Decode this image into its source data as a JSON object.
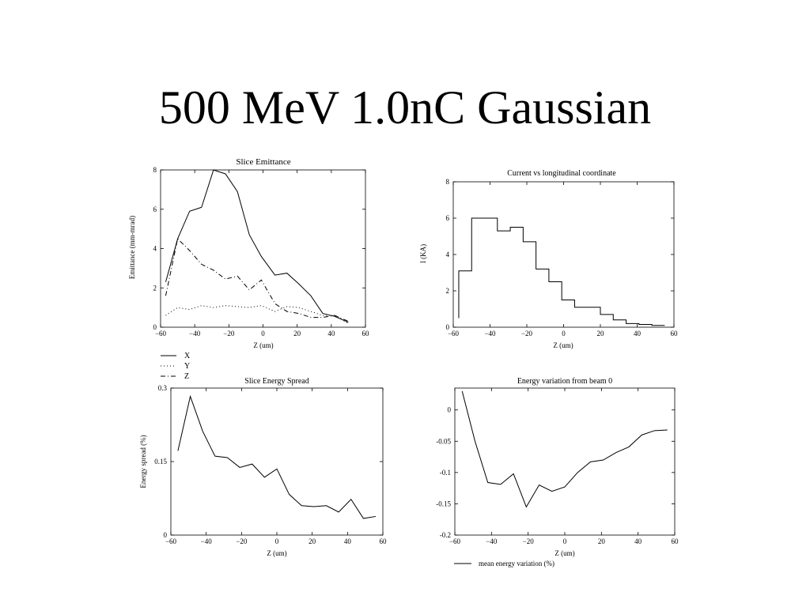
{
  "slide": {
    "title": "500 MeV 1.0nC Gaussian"
  },
  "chart_data": [
    {
      "id": "emittance",
      "type": "line",
      "title": "Slice Emittance",
      "xlabel": "Z (um)",
      "ylabel": "Emittance (mm-mrad)",
      "xlim": [
        -60,
        60
      ],
      "ylim": [
        0,
        8
      ],
      "xticks": [
        -60,
        -40,
        -20,
        0,
        20,
        40,
        60
      ],
      "yticks": [
        0,
        2,
        4,
        6,
        8
      ],
      "xtick_labels": [
        "−60",
        "−40",
        "−20",
        "0",
        "20",
        "40",
        "60"
      ],
      "ytick_labels": [
        "0",
        "2",
        "4",
        "6",
        "8"
      ],
      "legend_position": "below-left",
      "series": [
        {
          "name": "X",
          "style": "solid",
          "x": [
            -57,
            -50,
            -43,
            -36,
            -29,
            -22,
            -15,
            -8,
            -1,
            7,
            14,
            21,
            28,
            35,
            42,
            50
          ],
          "y": [
            2.3,
            4.5,
            5.9,
            6.1,
            8.0,
            7.8,
            6.9,
            4.7,
            3.6,
            2.65,
            2.75,
            2.2,
            1.6,
            0.7,
            0.55,
            0.25
          ]
        },
        {
          "name": "Y",
          "style": "dotted",
          "x": [
            -57,
            -50,
            -43,
            -36,
            -29,
            -22,
            -15,
            -8,
            -1,
            7,
            14,
            21,
            28,
            35,
            42,
            50
          ],
          "y": [
            0.6,
            1.0,
            0.9,
            1.1,
            1.0,
            1.1,
            1.05,
            1.0,
            1.1,
            0.8,
            1.05,
            1.0,
            0.8,
            0.6,
            0.6,
            0.2
          ]
        },
        {
          "name": "Z",
          "style": "dashdot",
          "x": [
            -57,
            -50,
            -43,
            -36,
            -29,
            -22,
            -15,
            -8,
            -1,
            7,
            14,
            21,
            28,
            35,
            42,
            50
          ],
          "y": [
            1.6,
            4.5,
            3.9,
            3.2,
            2.9,
            2.45,
            2.6,
            1.9,
            2.4,
            1.2,
            0.8,
            0.7,
            0.5,
            0.5,
            0.6,
            0.3
          ]
        }
      ]
    },
    {
      "id": "current",
      "type": "line",
      "step": true,
      "title": "Current vs longitudinal coordinate",
      "xlabel": "Z (um)",
      "ylabel": "I (KA)",
      "xlim": [
        -60,
        60
      ],
      "ylim": [
        0,
        8
      ],
      "xticks": [
        -60,
        -40,
        -20,
        0,
        20,
        40,
        60
      ],
      "yticks": [
        0,
        2,
        4,
        6,
        8
      ],
      "xtick_labels": [
        "−60",
        "−40",
        "−20",
        "0",
        "20",
        "40",
        "60"
      ],
      "ytick_labels": [
        "0",
        "2",
        "4",
        "6",
        "8"
      ],
      "series": [
        {
          "edges": [
            -57,
            -50,
            -43,
            -36,
            -29,
            -22,
            -15,
            -8,
            -1,
            6,
            13,
            20,
            27,
            34,
            41,
            48,
            55
          ],
          "y": [
            3.1,
            6.0,
            6.0,
            5.3,
            5.5,
            4.7,
            3.2,
            2.5,
            1.5,
            1.1,
            1.1,
            0.7,
            0.4,
            0.2,
            0.15,
            0.1
          ],
          "start_y": 0.5
        }
      ]
    },
    {
      "id": "energy-spread",
      "type": "line",
      "title": "Slice Energy Spread",
      "xlabel": "Z (um)",
      "ylabel": "Energy spread (%)",
      "xlim": [
        -60,
        60
      ],
      "ylim": [
        0,
        0.3
      ],
      "xticks": [
        -60,
        -40,
        -20,
        0,
        20,
        40,
        60
      ],
      "yticks": [
        0,
        0.15,
        0.3
      ],
      "xtick_labels": [
        "−60",
        "−40",
        "−20",
        "0",
        "20",
        "40",
        "60"
      ],
      "ytick_labels": [
        "0",
        "0.15",
        "0.3"
      ],
      "series": [
        {
          "x": [
            -56,
            -49,
            -42,
            -35,
            -28,
            -21,
            -14,
            -7,
            0,
            7,
            14,
            21,
            28,
            35,
            42,
            49,
            56
          ],
          "y": [
            0.172,
            0.283,
            0.212,
            0.161,
            0.158,
            0.138,
            0.145,
            0.118,
            0.135,
            0.083,
            0.06,
            0.058,
            0.06,
            0.047,
            0.073,
            0.034,
            0.038
          ]
        }
      ]
    },
    {
      "id": "energy-variation",
      "type": "line",
      "title": "Energy variation from beam 0",
      "xlabel": "Z (um)",
      "ylabel": "",
      "xlim": [
        -60,
        60
      ],
      "ylim": [
        -0.2,
        0.035
      ],
      "xticks": [
        -60,
        -40,
        -20,
        0,
        20,
        40,
        60
      ],
      "yticks": [
        -0.2,
        -0.15,
        -0.1,
        -0.05,
        0
      ],
      "xtick_labels": [
        "−60",
        "−40",
        "−20",
        "0",
        "20",
        "40",
        "60"
      ],
      "ytick_labels": [
        "-0.2",
        "-0.15",
        "-0.1",
        "-0.05",
        "0"
      ],
      "legend_position": "below-left",
      "series": [
        {
          "name": "mean energy variation (%)",
          "x": [
            -56,
            -49,
            -42,
            -35,
            -28,
            -21,
            -14,
            -7,
            0,
            7,
            14,
            21,
            28,
            35,
            42,
            49,
            56
          ],
          "y": [
            0.03,
            -0.05,
            -0.116,
            -0.119,
            -0.102,
            -0.155,
            -0.12,
            -0.13,
            -0.123,
            -0.1,
            -0.083,
            -0.08,
            -0.068,
            -0.059,
            -0.04,
            -0.033,
            -0.032
          ]
        }
      ]
    }
  ]
}
